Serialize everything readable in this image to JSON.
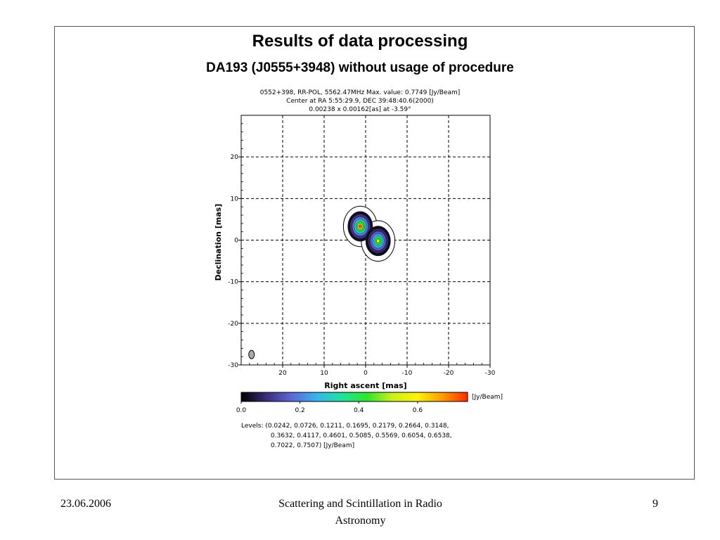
{
  "slide": {
    "title": "Results of data processing",
    "subtitle": "DA193 (J0555+3948) without usage of procedure",
    "footer_left": "23.06.2006",
    "footer_center_line1": "Scattering and Scintillation in Radio",
    "footer_center_line2": "Astronomy",
    "page_number": "9"
  },
  "chart_data": {
    "type": "heatmap",
    "header_lines": [
      "0552+398, RR-POL, 5562.47MHz Max. value: 0.7749 [Jy/Beam]",
      "Center at RA 5:55:29.9, DEC 39:48:40.6(2000)",
      "0.00238 x 0.00162[as] at -3.59°"
    ],
    "xlabel": "Right ascent [mas]",
    "ylabel": "Declination [mas]",
    "xlim": [
      30,
      -30
    ],
    "ylim": [
      -30,
      30
    ],
    "xticks": [
      20,
      10,
      0,
      -10,
      -20,
      -30
    ],
    "yticks": [
      20,
      10,
      0,
      -10,
      -20,
      -30
    ],
    "grid": true,
    "components": [
      {
        "x": 1.3,
        "y": 3.3,
        "peak": 0.7749
      },
      {
        "x": -3.0,
        "y": -0.2,
        "peak": 0.62
      }
    ],
    "beam": {
      "x": 27.5,
      "y": -27.5
    },
    "colorbar": {
      "unit": "[Jy/Beam]",
      "range": [
        0.0,
        0.77
      ],
      "ticks": [
        "0.0",
        "0.2",
        "0.4",
        "0.6"
      ],
      "colors": [
        "#000000",
        "#3a2d7a",
        "#5c68d8",
        "#37b4ee",
        "#1fe39a",
        "#2ee62c",
        "#c9f01a",
        "#fff20a",
        "#ff9a00",
        "#ff2a00"
      ]
    },
    "levels_line1": "Levels: (0.0242, 0.0726, 0.1211, 0.1695, 0.2179, 0.2664, 0.3148,",
    "levels_line2": "0.3632, 0.4117, 0.4601, 0.5085, 0.5569, 0.6054, 0.6538,",
    "levels_line3": "0.7022, 0.7507) [Jy/Beam]"
  }
}
